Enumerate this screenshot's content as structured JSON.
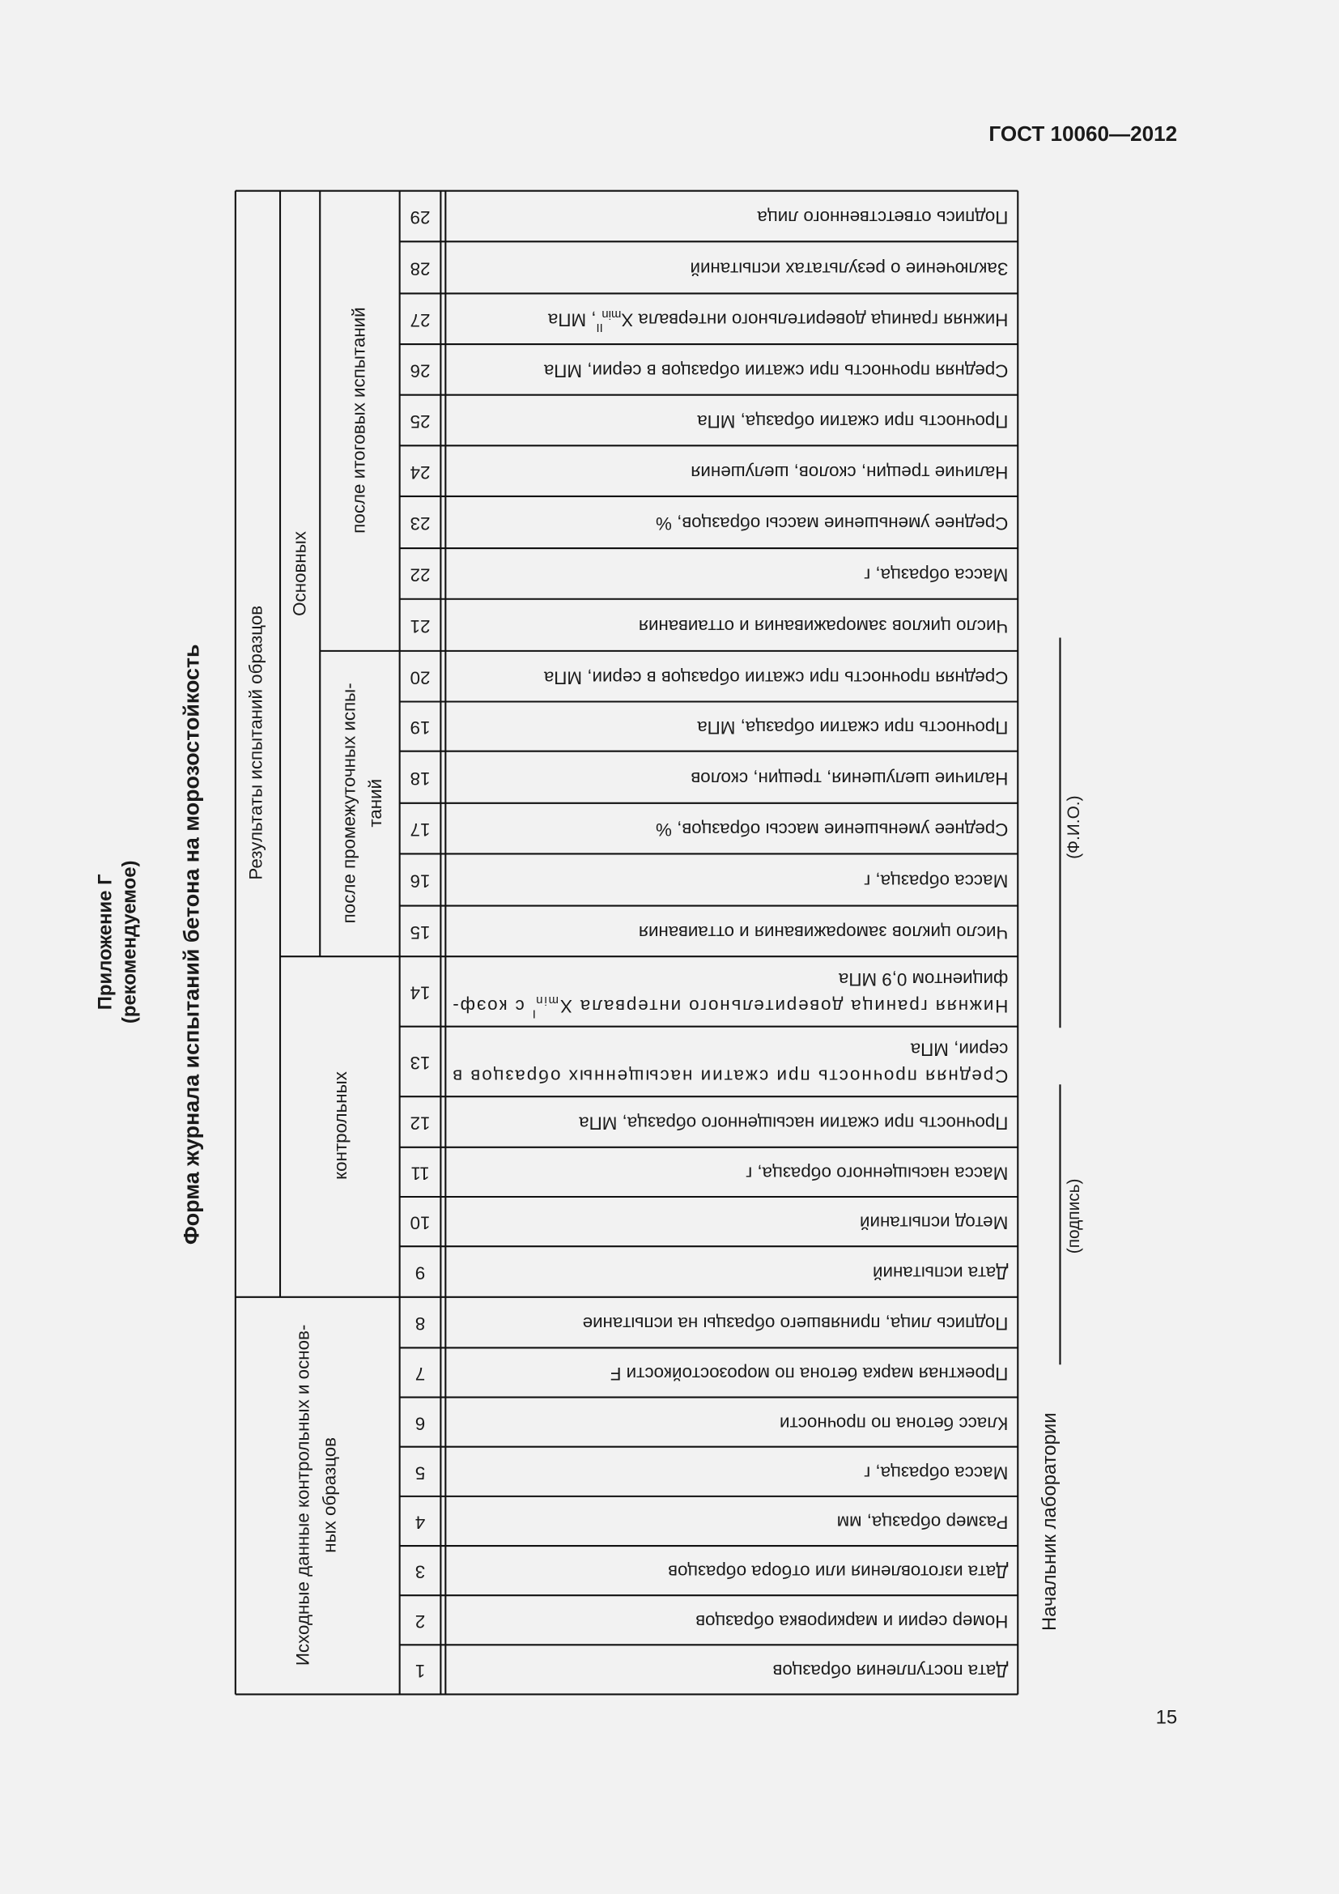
{
  "header": {
    "title": "ГОСТ 10060—2012",
    "page": "15"
  },
  "annex": {
    "title": "Приложение Г",
    "status": "(рекомендуемое)"
  },
  "form_title": "Форма журнала испытаний бетона на морозостойкость",
  "table": {
    "groups": {
      "initial": [
        "Исходные данные контрольных и основ-",
        "ных образцов"
      ],
      "results": [
        "Результаты испытаний образцов"
      ],
      "main": [
        "Основных"
      ],
      "control": [
        "контрольных"
      ],
      "final": [
        "после итоговых испытаний"
      ],
      "intermediate": [
        "после промежуточных испы-",
        "таний"
      ]
    },
    "rows": [
      {
        "number": 1,
        "lines": [
          "Дата поступления образцов"
        ]
      },
      {
        "number": 2,
        "lines": [
          "Номер серии и маркировка образцов"
        ]
      },
      {
        "number": 3,
        "lines": [
          "Дата изготовления или отбора образцов"
        ]
      },
      {
        "number": 4,
        "lines": [
          "Размер образца, мм"
        ]
      },
      {
        "number": 5,
        "lines": [
          "Масса образца, г"
        ]
      },
      {
        "number": 6,
        "lines": [
          "Класс бетона по прочности"
        ]
      },
      {
        "number": 7,
        "lines": [
          "Проектная марка бетона по морозостойкости F"
        ]
      },
      {
        "number": 8,
        "lines": [
          "Подпись лица, принявшего образцы на испытание"
        ]
      },
      {
        "number": 9,
        "lines": [
          "Дата испытаний"
        ]
      },
      {
        "number": 10,
        "lines": [
          "Метод испытаний"
        ]
      },
      {
        "number": 11,
        "lines": [
          "Масса насыщенного образца, г"
        ]
      },
      {
        "number": 12,
        "lines": [
          "Прочность при сжатии насыщенного образца, МПа"
        ]
      },
      {
        "number": 13,
        "lines": [
          "Средняя прочность при сжатии насыщенных образцов в",
          "серии, МПа"
        ]
      },
      {
        "number": 14,
        "lines": [
          [
            "Нижняя граница доверительного интервала X",
            {
              "sub": "min",
              "sup": "I"
            },
            " с коэф-"
          ],
          "фициентом 0,9 МПа"
        ]
      },
      {
        "number": 15,
        "lines": [
          "Число циклов замораживания и оттаивания"
        ]
      },
      {
        "number": 16,
        "lines": [
          "Масса образца, г"
        ]
      },
      {
        "number": 17,
        "lines": [
          "Среднее уменьшение массы образцов, %"
        ]
      },
      {
        "number": 18,
        "lines": [
          "Наличие шелушения, трещин, сколов"
        ]
      },
      {
        "number": 19,
        "lines": [
          "Прочность при сжатии образца, МПа"
        ]
      },
      {
        "number": 20,
        "lines": [
          "Средняя прочность при сжатии образцов в серии, МПа"
        ]
      },
      {
        "number": 21,
        "lines": [
          "Число циклов замораживания и оттаивания"
        ]
      },
      {
        "number": 22,
        "lines": [
          "Масса образца, г"
        ]
      },
      {
        "number": 23,
        "lines": [
          "Среднее уменьшение массы образцов, %"
        ]
      },
      {
        "number": 24,
        "lines": [
          "Наличие трещин, сколов, шелушения"
        ]
      },
      {
        "number": 25,
        "lines": [
          "Прочность при сжатии образца, МПа"
        ]
      },
      {
        "number": 26,
        "lines": [
          "Средняя прочность при сжатии образцов в серии, МПа"
        ]
      },
      {
        "number": 27,
        "lines": [
          [
            "Нижняя граница доверительного интервала X",
            {
              "sub": "min",
              "sup": "II"
            },
            ", МПа"
          ]
        ]
      },
      {
        "number": 28,
        "lines": [
          "Заключение о результатах испытаний"
        ]
      },
      {
        "number": 29,
        "lines": [
          "Подпись ответственного лица"
        ]
      }
    ]
  },
  "signature": {
    "role": "Начальник лаборатории",
    "sign": "(подпись)",
    "name": "(Ф.И.О.)"
  }
}
